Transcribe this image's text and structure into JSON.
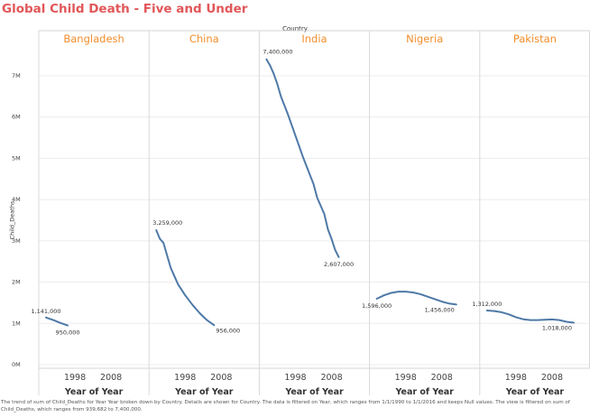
{
  "chart_data": {
    "type": "line",
    "title": "Global Child Death - Five and Under",
    "column_header": "Country",
    "ylabel": "Child_Deaths",
    "xlabel": "Year of Year",
    "ylim": [
      0,
      7800000
    ],
    "y_ticks": [
      {
        "value": 0,
        "label": "0M"
      },
      {
        "value": 1000000,
        "label": "1M"
      },
      {
        "value": 2000000,
        "label": "2M"
      },
      {
        "value": 3000000,
        "label": "3M"
      },
      {
        "value": 4000000,
        "label": "4M"
      },
      {
        "value": 5000000,
        "label": "5M"
      },
      {
        "value": 6000000,
        "label": "6M"
      },
      {
        "value": 7000000,
        "label": "7M"
      }
    ],
    "x_ticks": [
      1998,
      2008
    ],
    "x_tick_labels": [
      "1998",
      "2008"
    ],
    "xlim": [
      1989,
      2017
    ],
    "line_color": "#4e79a7",
    "header_color": "#f28e2b",
    "title_color": "#e15759",
    "panels": [
      {
        "country": "Bangladesh",
        "points": [
          [
            1990,
            1141000
          ],
          [
            1992,
            1080000
          ],
          [
            1994,
            1010000
          ],
          [
            1996,
            950000
          ]
        ],
        "labels": [
          {
            "text": "1,141,000",
            "x": 1990,
            "y": 1141000,
            "pos": "above"
          },
          {
            "text": "950,000",
            "x": 1996,
            "y": 950000,
            "pos": "below"
          }
        ]
      },
      {
        "country": "China",
        "points": [
          [
            1990,
            3259000
          ],
          [
            1991,
            3050000
          ],
          [
            1992,
            2950000
          ],
          [
            1993,
            2650000
          ],
          [
            1994,
            2350000
          ],
          [
            1995,
            2150000
          ],
          [
            1996,
            1950000
          ],
          [
            1998,
            1680000
          ],
          [
            2000,
            1450000
          ],
          [
            2002,
            1250000
          ],
          [
            2004,
            1080000
          ],
          [
            2006,
            956000
          ]
        ],
        "labels": [
          {
            "text": "3,259,000",
            "x": 1990,
            "y": 3259000,
            "pos": "above-right"
          },
          {
            "text": "956,000",
            "x": 2006,
            "y": 956000,
            "pos": "below-right"
          }
        ]
      },
      {
        "country": "India",
        "points": [
          [
            1990,
            7400000
          ],
          [
            1991,
            7250000
          ],
          [
            1992,
            7050000
          ],
          [
            1993,
            6800000
          ],
          [
            1994,
            6500000
          ],
          [
            1996,
            6050000
          ],
          [
            1998,
            5550000
          ],
          [
            2000,
            5050000
          ],
          [
            2002,
            4600000
          ],
          [
            2003,
            4380000
          ],
          [
            2004,
            4050000
          ],
          [
            2006,
            3650000
          ],
          [
            2007,
            3280000
          ],
          [
            2008,
            3050000
          ],
          [
            2009,
            2780000
          ],
          [
            2010,
            2607000
          ]
        ],
        "labels": [
          {
            "text": "7,400,000",
            "x": 1990,
            "y": 7400000,
            "pos": "above-right"
          },
          {
            "text": "2,607,000",
            "x": 2010,
            "y": 2607000,
            "pos": "below"
          }
        ]
      },
      {
        "country": "Nigeria",
        "points": [
          [
            1990,
            1596000
          ],
          [
            1992,
            1680000
          ],
          [
            1994,
            1740000
          ],
          [
            1996,
            1770000
          ],
          [
            1998,
            1770000
          ],
          [
            2000,
            1750000
          ],
          [
            2002,
            1710000
          ],
          [
            2004,
            1650000
          ],
          [
            2006,
            1590000
          ],
          [
            2008,
            1530000
          ],
          [
            2010,
            1480000
          ],
          [
            2012,
            1456000
          ]
        ],
        "labels": [
          {
            "text": "1,596,000",
            "x": 1990,
            "y": 1596000,
            "pos": "below"
          },
          {
            "text": "1,456,000",
            "x": 2012,
            "y": 1456000,
            "pos": "below-left"
          }
        ]
      },
      {
        "country": "Pakistan",
        "points": [
          [
            1990,
            1312000
          ],
          [
            1992,
            1300000
          ],
          [
            1994,
            1270000
          ],
          [
            1996,
            1220000
          ],
          [
            1998,
            1150000
          ],
          [
            2000,
            1100000
          ],
          [
            2002,
            1080000
          ],
          [
            2004,
            1080000
          ],
          [
            2006,
            1090000
          ],
          [
            2008,
            1095000
          ],
          [
            2010,
            1080000
          ],
          [
            2012,
            1040000
          ],
          [
            2014,
            1018000
          ]
        ],
        "labels": [
          {
            "text": "1,312,000",
            "x": 1990,
            "y": 1312000,
            "pos": "above"
          },
          {
            "text": "1,018,000",
            "x": 2014,
            "y": 1018000,
            "pos": "below-left"
          }
        ]
      }
    ]
  },
  "footer": "The trend of sum of Child_Deaths for Year Year broken down by Country.  Details are shown for Country. The data is filtered on Year, which ranges from 1/1/1990 to 1/1/2016 and keeps Null values. The view is filtered on sum of Child_Deaths, which ranges from 939,682 to 7,400,000."
}
